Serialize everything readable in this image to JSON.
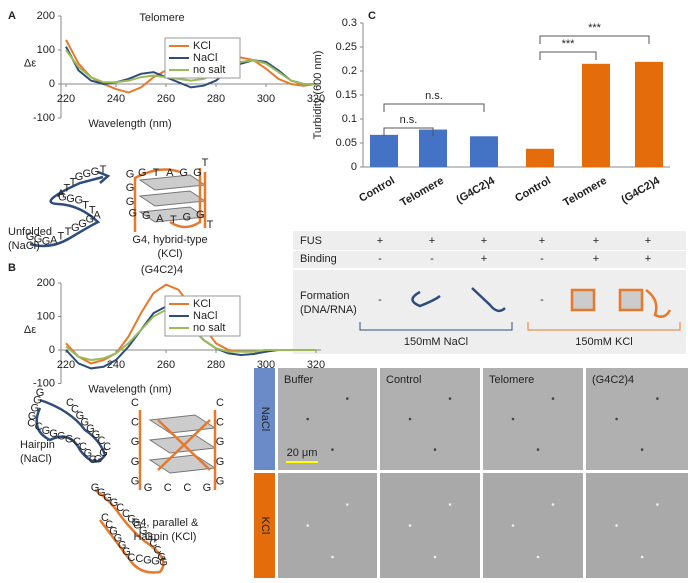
{
  "panel_labels": [
    "A",
    "B",
    "C"
  ],
  "chart_data": [
    {
      "type": "line",
      "title": "Telomere",
      "y_label": "Δε",
      "x_label": "Wavelength (nm)",
      "x": [
        220,
        225,
        230,
        235,
        240,
        245,
        250,
        255,
        260,
        265,
        270,
        275,
        280,
        285,
        290,
        295,
        300,
        305,
        310,
        315,
        320
      ],
      "xlim": [
        218,
        322
      ],
      "ylim": [
        -100,
        200
      ],
      "xticks": [
        220,
        240,
        260,
        280,
        300,
        320
      ],
      "yticks": [
        -100,
        0,
        100,
        200
      ],
      "legend": "upper right",
      "series": [
        {
          "name": "KCl",
          "color": "#e8792b",
          "values": [
            130,
            60,
            20,
            0,
            -15,
            -25,
            -10,
            20,
            40,
            45,
            40,
            35,
            50,
            70,
            78,
            70,
            45,
            15,
            0,
            -5,
            0
          ]
        },
        {
          "name": "NaCl",
          "color": "#2e4d7b",
          "values": [
            110,
            40,
            10,
            0,
            5,
            15,
            30,
            35,
            20,
            5,
            -10,
            -5,
            10,
            40,
            60,
            70,
            65,
            40,
            10,
            0,
            0
          ]
        },
        {
          "name": "no salt",
          "color": "#9bbb59",
          "values": [
            100,
            50,
            20,
            5,
            5,
            10,
            20,
            25,
            20,
            15,
            10,
            15,
            30,
            50,
            65,
            70,
            60,
            35,
            10,
            0,
            0
          ]
        }
      ]
    },
    {
      "type": "line",
      "title": "(G4C2)4",
      "y_label": "Δε",
      "x_label": "Wavelength (nm)",
      "x": [
        220,
        225,
        230,
        235,
        240,
        245,
        250,
        255,
        260,
        265,
        270,
        275,
        280,
        285,
        290,
        295,
        300,
        305,
        310,
        315,
        320
      ],
      "xlim": [
        218,
        322
      ],
      "ylim": [
        -100,
        200
      ],
      "xticks": [
        220,
        240,
        260,
        280,
        300,
        320
      ],
      "yticks": [
        -100,
        0,
        100,
        200
      ],
      "legend": "upper right",
      "series": [
        {
          "name": "KCl",
          "color": "#e8792b",
          "values": [
            20,
            -20,
            -40,
            -30,
            -10,
            40,
            110,
            170,
            195,
            180,
            130,
            70,
            20,
            0,
            -5,
            -5,
            0,
            0,
            0,
            0,
            0
          ]
        },
        {
          "name": "NaCl",
          "color": "#2e4d7b",
          "values": [
            0,
            -40,
            -55,
            -50,
            -30,
            10,
            60,
            110,
            130,
            110,
            70,
            30,
            5,
            -10,
            -15,
            -12,
            -5,
            0,
            0,
            0,
            0
          ]
        },
        {
          "name": "no salt",
          "color": "#9bbb59",
          "values": [
            10,
            -20,
            -30,
            -25,
            -10,
            20,
            60,
            100,
            120,
            105,
            70,
            30,
            5,
            -5,
            -5,
            -5,
            0,
            0,
            0,
            0,
            0
          ]
        }
      ]
    },
    {
      "type": "bar",
      "y_label": "Turbidity (600 nm)",
      "categories": [
        "Control",
        "Telomere",
        "(G4C2)4",
        "Control",
        "Telomere",
        "(G4C2)4"
      ],
      "values": [
        0.067,
        0.078,
        0.064,
        0.038,
        0.215,
        0.219
      ],
      "colors": [
        "#4472c4",
        "#4472c4",
        "#4472c4",
        "#e46c0a",
        "#e46c0a",
        "#e46c0a"
      ],
      "ylim": [
        0,
        0.3
      ],
      "yticks": [
        0,
        0.05,
        0.1,
        0.15,
        0.2,
        0.25,
        0.3
      ],
      "annotations": [
        "n.s.",
        "n.s.",
        "***",
        "***"
      ]
    }
  ],
  "diagrams": {
    "unfolded": {
      "label": [
        "Unfolded",
        "(NaCl)"
      ],
      "letters": [
        "G",
        "G",
        "G",
        "A",
        "T",
        "T",
        "G",
        "G",
        "G",
        "A",
        "T",
        "T",
        "G",
        "G",
        "G",
        "A",
        "T",
        "T",
        "G",
        "G",
        "G",
        "T"
      ]
    },
    "g4_hybrid": {
      "label": [
        "G4, hybrid-type",
        "(KCl)"
      ],
      "letters": [
        "T",
        "G",
        "G",
        "A",
        "T",
        "G",
        "G",
        "G",
        "G",
        "G",
        "G",
        "A",
        "T",
        "G",
        "G",
        "T"
      ]
    },
    "hairpin": {
      "label": [
        "Hairpin",
        "(NaCl)"
      ],
      "letters": [
        "G",
        "G",
        "G",
        "G",
        "C",
        "C",
        "G",
        "G",
        "G",
        "G",
        "C",
        "C",
        "G",
        "G",
        "G",
        "G",
        "C",
        "C",
        "G",
        "G",
        "G",
        "G",
        "C",
        "C"
      ]
    },
    "g4_parallel": {
      "label": [
        "G4, parallel &",
        "Hairpin (KCl)"
      ],
      "letters": [
        "C",
        "C",
        "G",
        "G",
        "G",
        "G",
        "C",
        "C",
        "G",
        "G",
        "G",
        "G",
        "C",
        "C"
      ],
      "hairpin_letters": [
        "G",
        "G",
        "G",
        "G",
        "C",
        "C",
        "G",
        "G",
        "G",
        "G",
        "C",
        "C",
        "G",
        "G",
        "G",
        "G",
        "C",
        "C",
        "G",
        "G",
        "G",
        "G",
        "C",
        "C"
      ]
    }
  },
  "table": {
    "rows": [
      [
        "FUS",
        "+",
        "+",
        "+",
        "+",
        "+",
        "+"
      ],
      [
        "Binding",
        "-",
        "-",
        "+",
        "-",
        "+",
        "+"
      ]
    ],
    "formation_label": [
      "Formation",
      "(DNA/RNA)"
    ],
    "formation_cells": [
      "-",
      "-"
    ],
    "groups": [
      "150mM NaCl",
      "150mM KCl"
    ]
  },
  "microscopy": {
    "columns": [
      "Buffer",
      "Control",
      "Telomere",
      "(G4C2)4"
    ],
    "rows": [
      "NaCl",
      "KCl"
    ],
    "scale_bar": "20 μm"
  }
}
